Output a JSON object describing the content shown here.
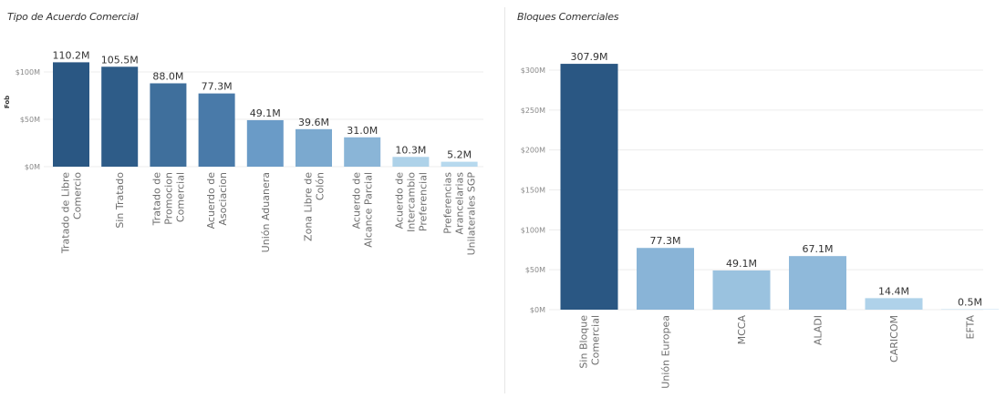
{
  "colors": {
    "dark": "#2a5783",
    "mid": "#5b8fbf",
    "light": "#b7d9ee"
  },
  "chart_data": [
    {
      "type": "bar",
      "title": "Tipo de Acuerdo Comercial",
      "ylabel": "Fob",
      "xlabel": "",
      "ylim": [
        0,
        115
      ],
      "yticks": [
        0,
        50,
        100
      ],
      "ytick_labels": [
        "$0M",
        "$50M",
        "$100M"
      ],
      "categories": [
        [
          "Tratado de Libre",
          "Comercio"
        ],
        [
          "Sin Tratado"
        ],
        [
          "Tratado de",
          "Promocion",
          "Comercial"
        ],
        [
          "Acuerdo de",
          "Asociacion"
        ],
        [
          "Unión Aduanera"
        ],
        [
          "Zona Libre de",
          "Colón"
        ],
        [
          "Acuerdo de",
          "Alcance Parcial"
        ],
        [
          "Acuerdo de",
          "Intercambio",
          "Preferencial"
        ],
        [
          "Preferencias",
          "Arancelarias",
          "Unilaterales SGP"
        ]
      ],
      "values": [
        110.2,
        105.5,
        88.0,
        77.3,
        49.1,
        39.6,
        31.0,
        10.3,
        5.2
      ],
      "value_labels": [
        "110.2M",
        "105.5M",
        "88.0M",
        "77.3M",
        "49.1M",
        "39.6M",
        "31.0M",
        "10.3M",
        "5.2M"
      ],
      "grid": true
    },
    {
      "type": "bar",
      "title": "Bloques Comerciales",
      "ylabel": "",
      "xlabel": "",
      "ylim": [
        0,
        322
      ],
      "yticks": [
        0,
        50,
        100,
        150,
        200,
        250,
        300
      ],
      "ytick_labels": [
        "$0M",
        "$50M",
        "$100M",
        "$150M",
        "$200M",
        "$250M",
        "$300M"
      ],
      "categories": [
        [
          "Sin Bloque",
          "Comercial"
        ],
        [
          "Unión Europea"
        ],
        [
          "MCCA"
        ],
        [
          "ALADI"
        ],
        [
          "CARICOM"
        ],
        [
          "EFTA"
        ]
      ],
      "values": [
        307.9,
        77.3,
        49.1,
        67.1,
        14.4,
        0.5
      ],
      "value_labels": [
        "307.9M",
        "77.3M",
        "49.1M",
        "67.1M",
        "14.4M",
        "0.5M"
      ],
      "grid": true
    }
  ]
}
